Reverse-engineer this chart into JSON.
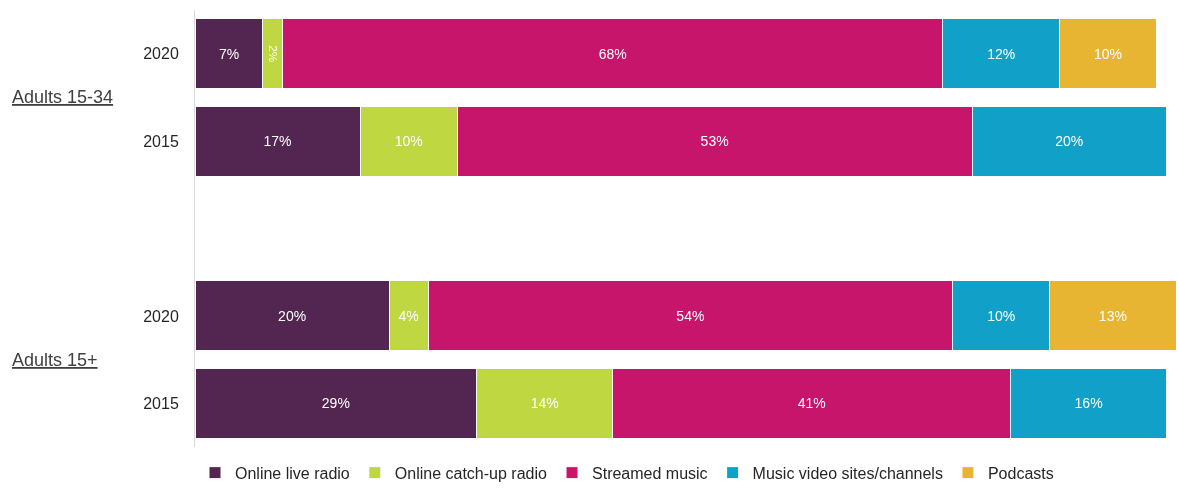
{
  "chart_data": {
    "type": "bar",
    "orientation": "horizontal",
    "stacked": true,
    "categories": [
      "2020",
      "2015",
      null,
      "2020",
      "2015"
    ],
    "xlim": [
      0,
      101
    ],
    "tick_labels": "y",
    "legend": "bottom",
    "annotations": [
      "Adults 15-34",
      "Adults 15+"
    ],
    "series": [
      {
        "name": "Online live radio",
        "color": "#532652",
        "values": [
          7,
          17,
          null,
          20,
          29
        ],
        "value_labels": [
          "7%",
          "17%",
          null,
          "20%",
          "29%"
        ]
      },
      {
        "name": "Online catch-up radio",
        "color": "#bfd841",
        "values": [
          2,
          10,
          null,
          4,
          14
        ],
        "value_labels": [
          "2%",
          "10%",
          null,
          "4%",
          "14%"
        ]
      },
      {
        "name": "Streamed music",
        "color": "#c8156c",
        "values": [
          68,
          53,
          null,
          54,
          41
        ],
        "value_labels": [
          "68%",
          "53%",
          null,
          "54%",
          "41%"
        ]
      },
      {
        "name": "Music video sites/channels",
        "color": "#11a0c8",
        "values": [
          12,
          20,
          null,
          10,
          16
        ],
        "value_labels": [
          "12%",
          "20%",
          null,
          "10%",
          "16%"
        ]
      },
      {
        "name": "Podcasts",
        "color": "#e8b533",
        "values": [
          10,
          null,
          null,
          13,
          null
        ],
        "value_labels": [
          "10%",
          null,
          null,
          "13%",
          null
        ]
      }
    ]
  }
}
